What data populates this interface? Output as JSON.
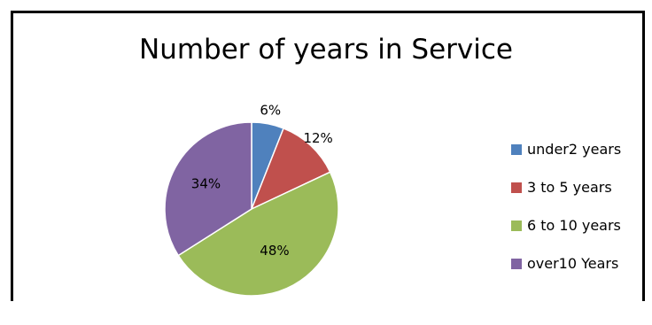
{
  "chart_data": {
    "type": "pie",
    "title": "Number of years in Service",
    "categories": [
      "under2 years",
      "3 to 5 years",
      "6 to 10 years",
      "over10 Years"
    ],
    "values": [
      6,
      12,
      48,
      34
    ],
    "labels": [
      "6%",
      "12%",
      "48%",
      "34%"
    ],
    "colors": [
      "#4F81BD",
      "#C0504D",
      "#9BBB59",
      "#8064A2"
    ],
    "legend_position": "right"
  }
}
